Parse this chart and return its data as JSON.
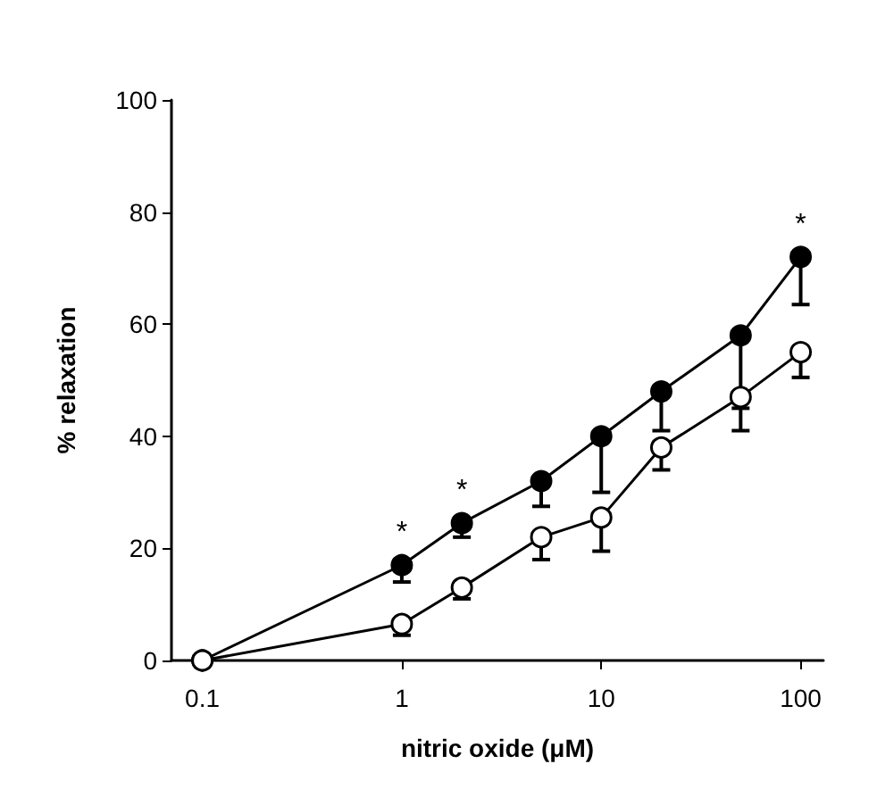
{
  "chart_data": {
    "type": "line",
    "xlabel": "nitric oxide (μM)",
    "ylabel": "% relaxation",
    "log": "x",
    "x": [
      0.1,
      1,
      2,
      5,
      10,
      20,
      50,
      100
    ],
    "series": [
      {
        "color": "#000000",
        "values": [
          0,
          17,
          24.5,
          32,
          40,
          48,
          58,
          72
        ],
        "errors": [
          null,
          [
            14,
            17
          ],
          [
            22,
            24.5
          ],
          [
            27.5,
            32
          ],
          [
            30,
            40
          ],
          [
            41,
            48
          ],
          [
            45,
            58
          ],
          [
            63.5,
            72
          ]
        ]
      },
      {
        "color": "#ffffff",
        "values": [
          0,
          6.5,
          13,
          22,
          25.5,
          38,
          47,
          55
        ],
        "errors": [
          null,
          [
            4.5,
            6.5
          ],
          [
            11,
            13
          ],
          [
            18,
            22
          ],
          [
            19.5,
            25.5
          ],
          [
            34,
            38
          ],
          [
            41,
            47
          ],
          [
            50.5,
            55
          ]
        ]
      }
    ],
    "xlim": [
      0.07,
      130
    ],
    "xticks": [
      0.1,
      1,
      10,
      100
    ],
    "ylim": [
      0,
      100
    ],
    "yticks": [
      0,
      20,
      40,
      60,
      80,
      100
    ],
    "grid": false,
    "marker": "circle",
    "line_style": "solid",
    "annotations": [
      {
        "text": "*",
        "x": 1,
        "y": 17
      },
      {
        "text": "*",
        "x": 2,
        "y": 24.5
      },
      {
        "text": "*",
        "x": 100,
        "y": 72
      }
    ]
  }
}
